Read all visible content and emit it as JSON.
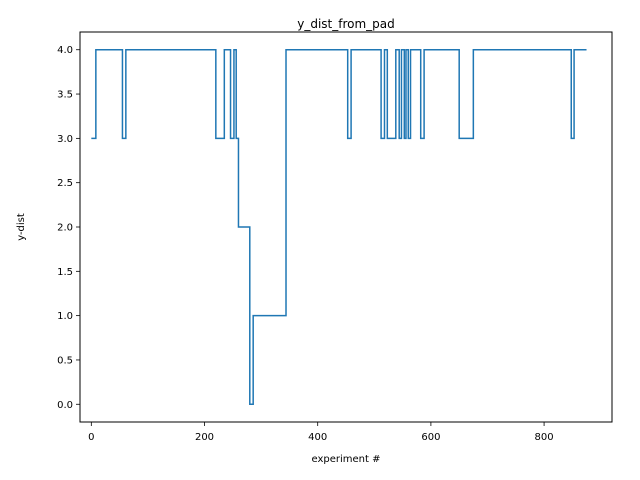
{
  "chart_data": {
    "type": "line",
    "title": "y_dist_from_pad",
    "xlabel": "experiment #",
    "ylabel": "y-dist",
    "xlim": [
      -20,
      920
    ],
    "ylim": [
      -0.2,
      4.2
    ],
    "xticks": [
      0,
      200,
      400,
      600,
      800
    ],
    "yticks": [
      0.0,
      0.5,
      1.0,
      1.5,
      2.0,
      2.5,
      3.0,
      3.5,
      4.0
    ],
    "ytick_labels": [
      "0.0",
      "0.5",
      "1.0",
      "1.5",
      "2.0",
      "2.5",
      "3.0",
      "3.5",
      "4.0"
    ],
    "grid": false,
    "legend": "none",
    "series": [
      {
        "color": "#1f77b4",
        "step": "post",
        "x": [
          0,
          8,
          55,
          61,
          220,
          235,
          246,
          252,
          256,
          260,
          280,
          286,
          344,
          453,
          459,
          512,
          518,
          523,
          538,
          544,
          548,
          553,
          556,
          560,
          564,
          582,
          588,
          650,
          675,
          848,
          853,
          875
        ],
        "y": [
          3,
          4,
          3,
          4,
          3,
          4,
          3,
          4,
          3,
          2,
          0,
          1,
          4,
          3,
          4,
          3,
          4,
          3,
          4,
          3,
          4,
          3,
          4,
          3,
          4,
          3,
          4,
          3,
          4,
          3,
          4,
          4
        ]
      }
    ]
  }
}
